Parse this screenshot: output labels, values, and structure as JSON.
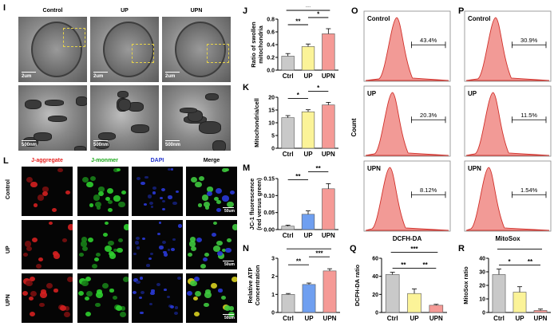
{
  "panel_letters": {
    "I": "I",
    "J": "J",
    "K": "K",
    "L": "L",
    "M": "M",
    "N": "N",
    "O": "O",
    "P": "P",
    "Q": "Q",
    "R": "R"
  },
  "em": {
    "columns": [
      "Control",
      "UP",
      "UPN"
    ],
    "top_scale": "2um",
    "bottom_scale": "500nm"
  },
  "fluor": {
    "columns": [
      "J-aggregate",
      "J-monmer",
      "DAPI",
      "Merge"
    ],
    "column_colors": [
      "#e8201e",
      "#18a818",
      "#2233cc",
      "#000000"
    ],
    "rows": [
      "Control",
      "UP",
      "UPN"
    ],
    "scale": "50um"
  },
  "flow": {
    "O": {
      "xlabel": "DCFH-DA",
      "ylabel": "Count",
      "panels": [
        {
          "label": "Control",
          "pct": "43.4%"
        },
        {
          "label": "UP",
          "pct": "20.3%"
        },
        {
          "label": "UPN",
          "pct": "8.12%"
        }
      ]
    },
    "P": {
      "xlabel": "MitoSox",
      "panels": [
        {
          "label": "Control",
          "pct": "30.9%"
        },
        {
          "label": "UP",
          "pct": "11.5%"
        },
        {
          "label": "UPN",
          "pct": "1.54%"
        }
      ]
    }
  },
  "chart_data": [
    {
      "id": "J",
      "type": "bar",
      "categories": [
        "Ctrl",
        "UP",
        "UPN"
      ],
      "values": [
        0.22,
        0.37,
        0.57
      ],
      "errors": [
        0.04,
        0.04,
        0.08
      ],
      "colors": [
        "#c9c9c9",
        "#fbf398",
        "#f59a96"
      ],
      "ylabel": "Ratio of swollen mitochondria",
      "ylim": [
        0,
        0.8
      ],
      "yticks": [
        "0.0",
        "0.2",
        "0.4",
        "0.6",
        "0.8"
      ],
      "sig": [
        {
          "from": 0,
          "to": 1,
          "label": "**",
          "level": 0
        },
        {
          "from": 1,
          "to": 2,
          "label": "*",
          "level": 1
        },
        {
          "from": 0,
          "to": 2,
          "label": "**",
          "level": 2
        }
      ]
    },
    {
      "id": "K",
      "type": "bar",
      "categories": [
        "Ctrl",
        "UP",
        "UPN"
      ],
      "values": [
        12,
        14.3,
        17
      ],
      "errors": [
        0.8,
        0.8,
        1.0
      ],
      "colors": [
        "#c9c9c9",
        "#fbf398",
        "#f59a96"
      ],
      "ylabel": "Mitochondria/cell",
      "ylim": [
        0,
        20
      ],
      "yticks": [
        "0",
        "5",
        "10",
        "15",
        "20"
      ],
      "sig": [
        {
          "from": 0,
          "to": 1,
          "label": "*",
          "level": 0
        },
        {
          "from": 1,
          "to": 2,
          "label": "*",
          "level": 1
        },
        {
          "from": 0,
          "to": 2,
          "label": "**",
          "level": 2
        }
      ]
    },
    {
      "id": "M",
      "type": "bar",
      "categories": [
        "Ctrl",
        "UP",
        "UPN"
      ],
      "values": [
        0.01,
        0.045,
        0.12
      ],
      "errors": [
        0.003,
        0.01,
        0.015
      ],
      "colors": [
        "#c9c9c9",
        "#6f9ff0",
        "#f59a96"
      ],
      "ylabel": "JC-1 fluorescence (red versus green)",
      "ylim": [
        0,
        0.15
      ],
      "yticks": [
        "0.00",
        "0.05",
        "0.10",
        "0.15"
      ],
      "sig": [
        {
          "from": 0,
          "to": 1,
          "label": "**",
          "level": 0
        },
        {
          "from": 1,
          "to": 2,
          "label": "**",
          "level": 1
        },
        {
          "from": 0,
          "to": 2,
          "label": "***",
          "level": 2
        }
      ]
    },
    {
      "id": "N",
      "type": "bar",
      "categories": [
        "Ctrl",
        "UP",
        "UPN"
      ],
      "values": [
        1.0,
        1.55,
        2.3
      ],
      "errors": [
        0.05,
        0.08,
        0.12
      ],
      "colors": [
        "#c9c9c9",
        "#6f9ff0",
        "#f59a96"
      ],
      "ylabel": "Relative ATP Concentration",
      "ylim": [
        0,
        3
      ],
      "yticks": [
        "0",
        "1",
        "2",
        "3"
      ],
      "sig": [
        {
          "from": 0,
          "to": 1,
          "label": "**",
          "level": 0
        },
        {
          "from": 1,
          "to": 2,
          "label": "***",
          "level": 1
        },
        {
          "from": 0,
          "to": 2,
          "label": "***",
          "level": 2
        }
      ]
    },
    {
      "id": "Q",
      "type": "bar",
      "categories": [
        "Ctrl",
        "UP",
        "UPN"
      ],
      "values": [
        42,
        21,
        8
      ],
      "errors": [
        2.5,
        5,
        1
      ],
      "colors": [
        "#c9c9c9",
        "#fbf398",
        "#f59a96"
      ],
      "ylabel": "DCFH-DA ratio",
      "ylim": [
        0,
        60
      ],
      "yticks": [
        "0",
        "20",
        "40",
        "60"
      ],
      "sig": [
        {
          "from": 0,
          "to": 1,
          "label": "**",
          "level": 0
        },
        {
          "from": 1,
          "to": 2,
          "label": "**",
          "level": 0
        },
        {
          "from": 0,
          "to": 2,
          "label": "***",
          "level": 2
        }
      ]
    },
    {
      "id": "R",
      "type": "bar",
      "categories": [
        "Ctrl",
        "UP",
        "UPN"
      ],
      "values": [
        28,
        15,
        1.5
      ],
      "errors": [
        4,
        4,
        1
      ],
      "colors": [
        "#c9c9c9",
        "#fbf398",
        "#f59a96"
      ],
      "ylabel": "MitoSox ratio",
      "ylim": [
        0,
        40
      ],
      "yticks": [
        "0",
        "10",
        "20",
        "30",
        "40"
      ],
      "sig": [
        {
          "from": 0,
          "to": 1,
          "label": "*",
          "level": 0
        },
        {
          "from": 1,
          "to": 2,
          "label": "**",
          "level": 0
        },
        {
          "from": 0,
          "to": 2,
          "label": "***",
          "level": 2
        }
      ]
    }
  ]
}
